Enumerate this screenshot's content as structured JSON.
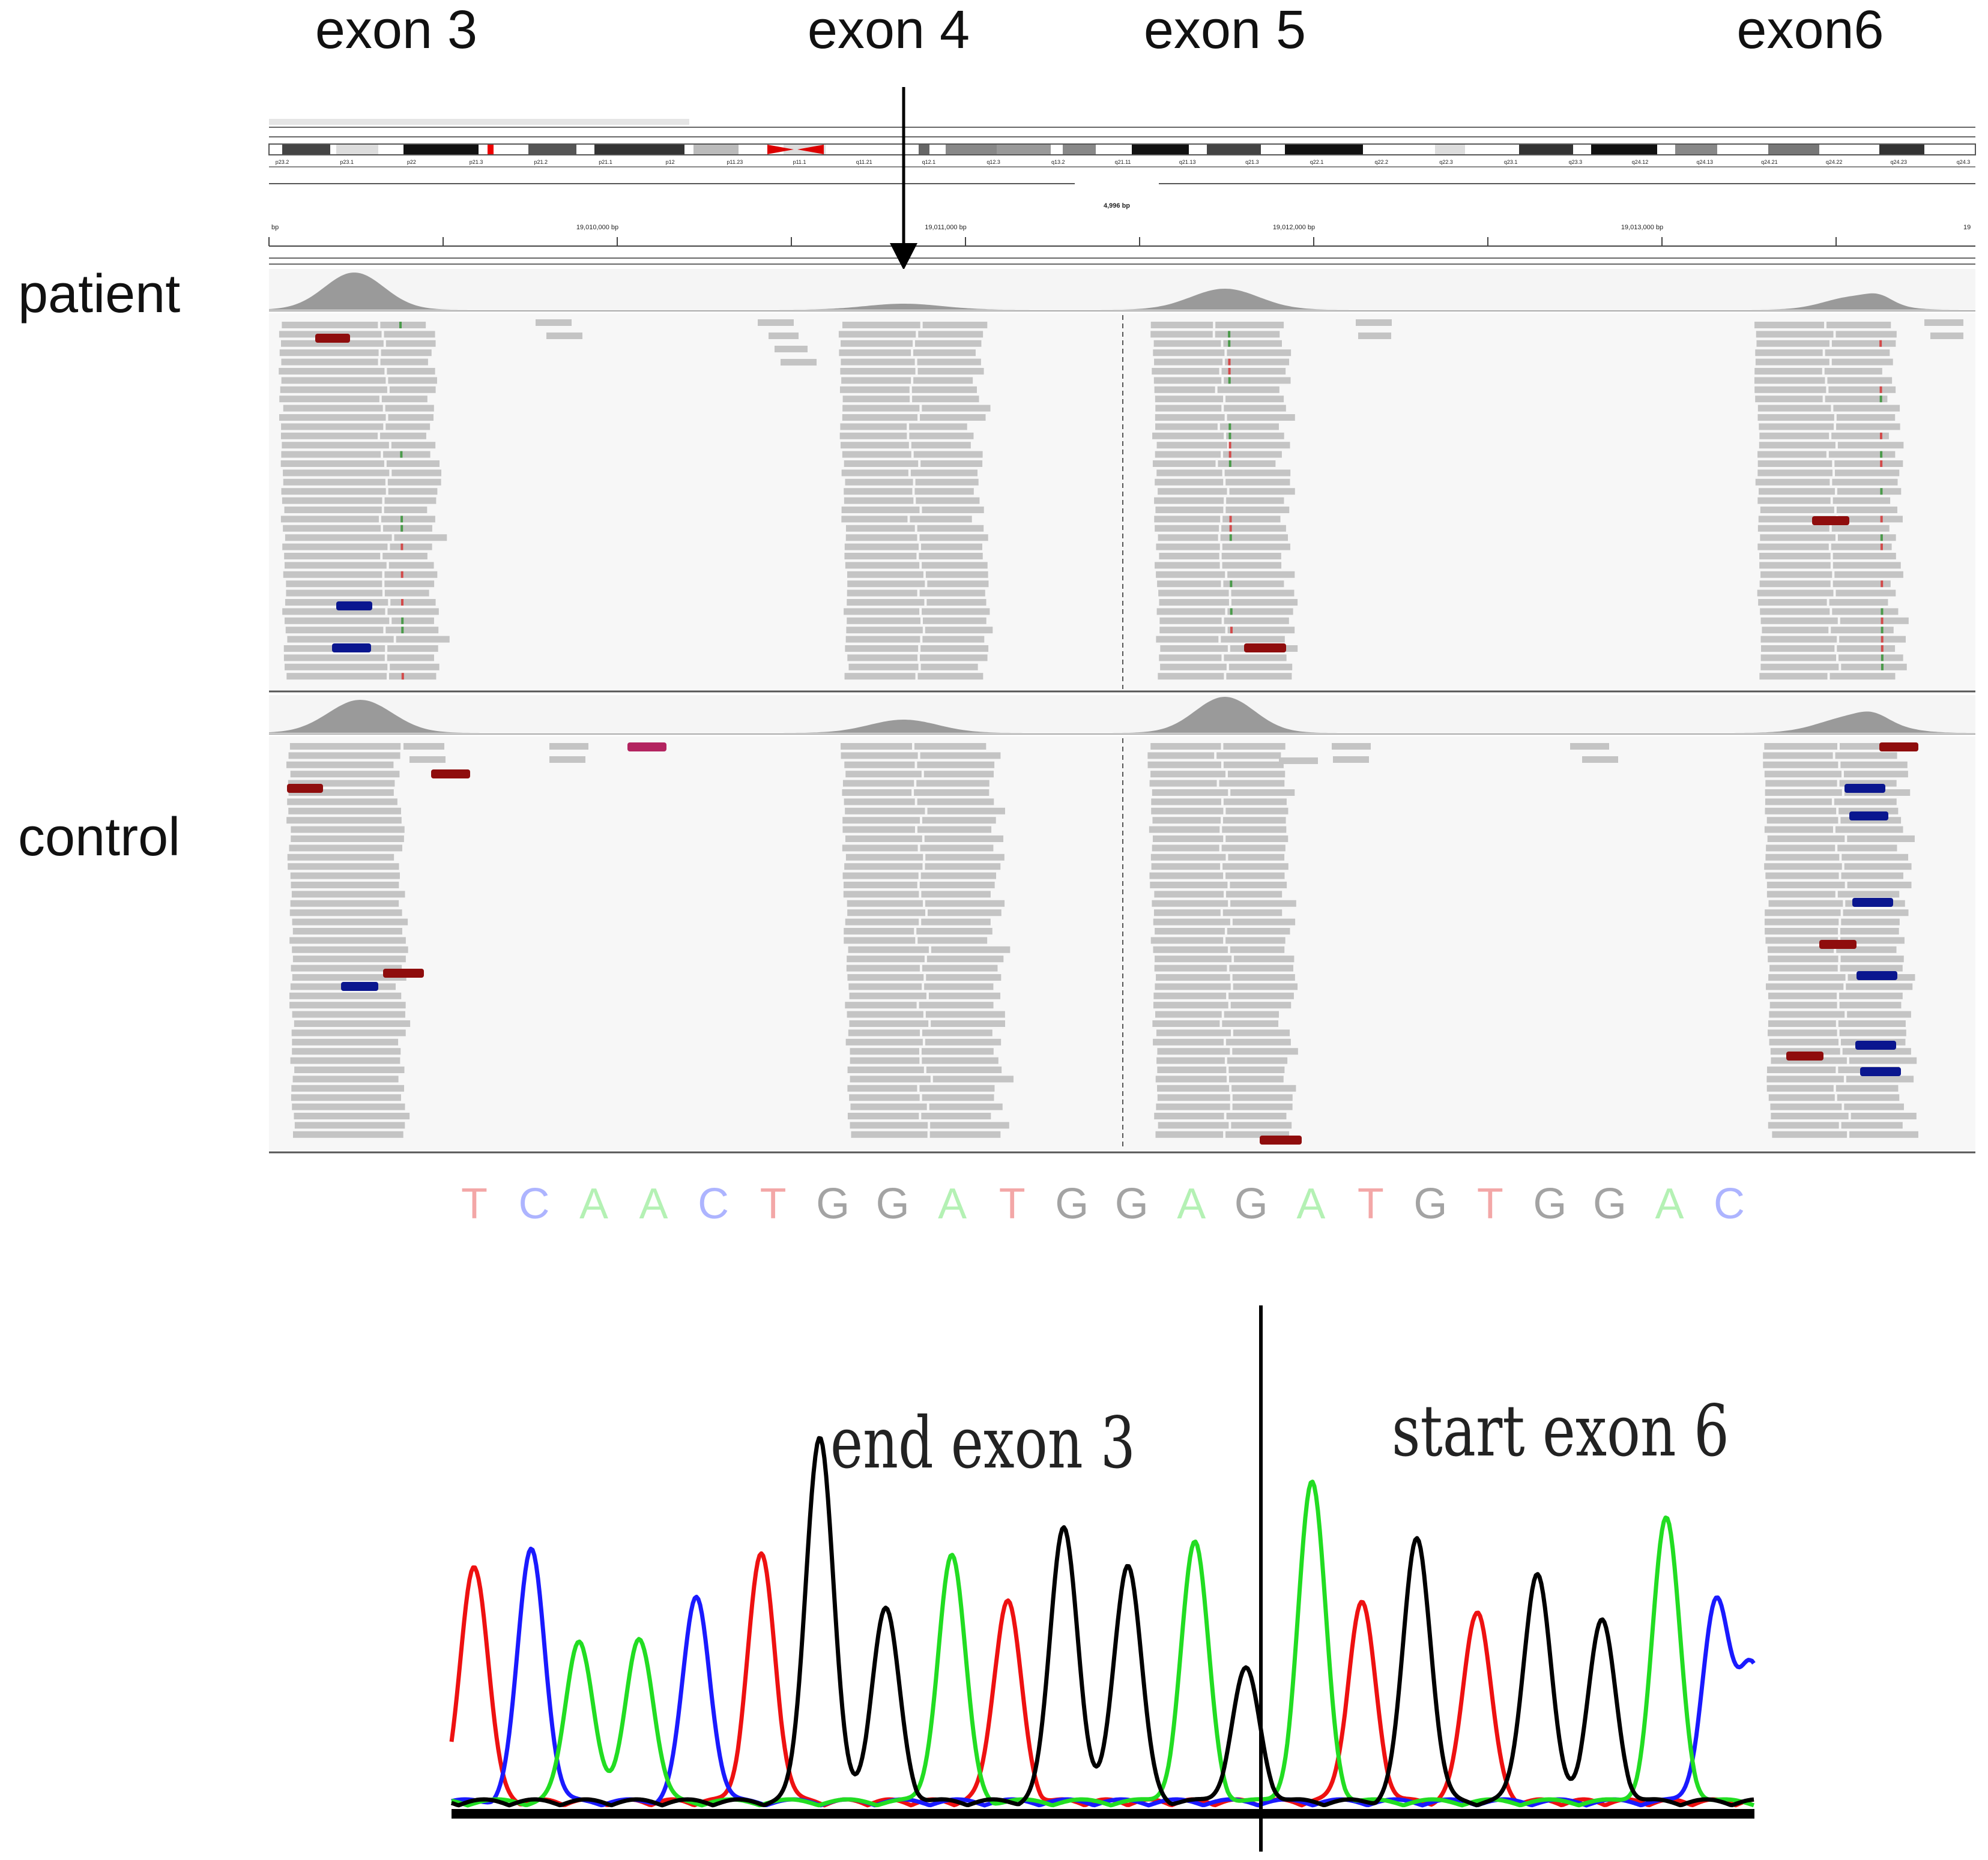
{
  "exon_labels": [
    "exon 3",
    "exon 4",
    "exon 5",
    "exon6"
  ],
  "track_labels": {
    "patient": "patient",
    "control": "control"
  },
  "igv": {
    "region_size": "4,996 bp",
    "coordinate_ticks": [
      "bp",
      "19,010,000 bp",
      "19,011,000 bp",
      "19,012,000 bp",
      "19,013,000 bp",
      "19"
    ],
    "cytobands": [
      "p23.2",
      "p23.1",
      "p22",
      "p21.3",
      "p21.2",
      "p21.1",
      "p12",
      "p11.23",
      "p11.1",
      "q11.21",
      "q12.1",
      "q12.3",
      "q13.2",
      "q21.11",
      "q21.13",
      "q21.3",
      "q22.1",
      "q22.2",
      "q22.3",
      "q23.1",
      "q23.3",
      "q24.12",
      "q24.13",
      "q24.21",
      "q24.22",
      "q24.23",
      "q24.3"
    ]
  },
  "sequence": {
    "bases": [
      "T",
      "C",
      "A",
      "A",
      "C",
      "T",
      "G",
      "G",
      "A",
      "T",
      "G",
      "G",
      "A",
      "G",
      "A",
      "T",
      "G",
      "T",
      "G",
      "G",
      "A",
      "C"
    ],
    "colors": {
      "A": "#3ddc3d",
      "C": "#2b3dff",
      "G": "#111111",
      "T": "#e01b1b"
    }
  },
  "chromatogram": {
    "label_left": "end exon 3",
    "label_right": "start exon 6",
    "colors": {
      "A": "#22dd22",
      "C": "#1a1aff",
      "G": "#000000",
      "T": "#ee1111"
    }
  }
}
